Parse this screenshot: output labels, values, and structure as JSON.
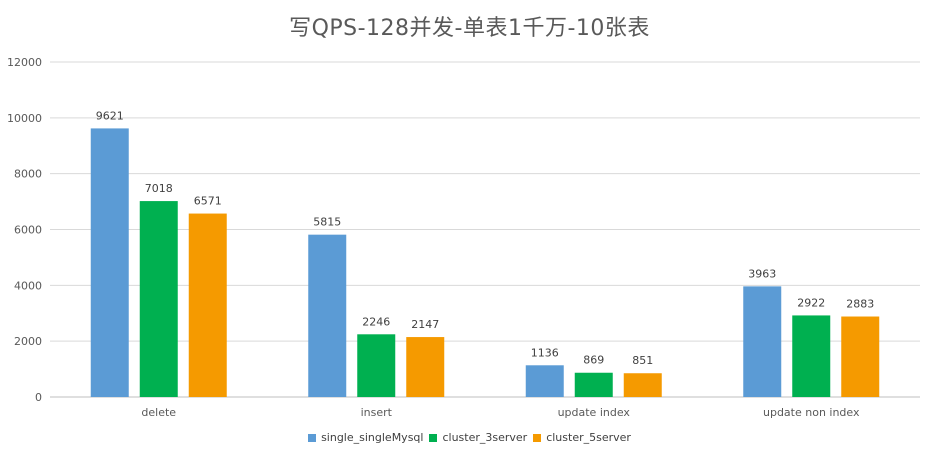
{
  "chart_data": {
    "type": "bar",
    "title": "写QPS-128并发-单表1千万-10张表",
    "xlabel": "",
    "ylabel": "",
    "ylim": [
      0,
      12000
    ],
    "yticks": [
      0,
      2000,
      4000,
      6000,
      8000,
      10000,
      12000
    ],
    "grid": true,
    "legend_position": "bottom",
    "categories": [
      "delete",
      "insert",
      "update index",
      "update non index"
    ],
    "series": [
      {
        "name": "single_singleMysql",
        "color": "#5b9bd5",
        "values": [
          9621,
          5815,
          1136,
          3963
        ]
      },
      {
        "name": "cluster_3server",
        "color": "#00b050",
        "values": [
          7018,
          2246,
          869,
          2922
        ]
      },
      {
        "name": "cluster_5server",
        "color": "#f59a00",
        "values": [
          6571,
          2147,
          851,
          2883
        ]
      }
    ]
  }
}
